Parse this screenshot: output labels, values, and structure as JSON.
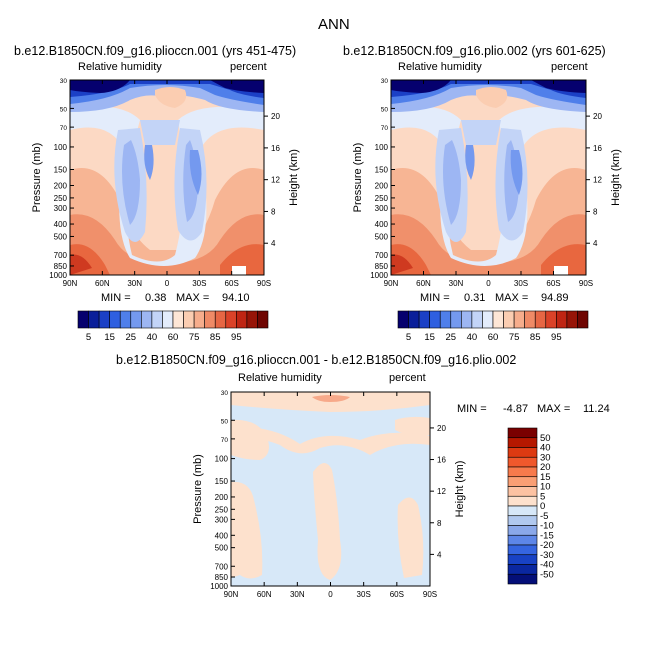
{
  "figure": {
    "title": "ANN"
  },
  "panels": [
    {
      "title": "b.e12.B1850CN.f09_g16.plioccn.001 (yrs 451-475)",
      "variable": "Relative humidity",
      "units": "percent",
      "ylabel": "Pressure (mb)",
      "y2label": "Height (km)",
      "min_label": "MIN =",
      "min_value": "0.38",
      "max_label": "MAX =",
      "max_value": "94.10"
    },
    {
      "title": "b.e12.B1850CN.f09_g16.plio.002 (yrs 601-625)",
      "variable": "Relative humidity",
      "units": "percent",
      "ylabel": "Pressure (mb)",
      "y2label": "Height (km)",
      "min_label": "MIN =",
      "min_value": "0.31",
      "max_label": "MAX =",
      "max_value": "94.89"
    },
    {
      "title": "b.e12.B1850CN.f09_g16.plioccn.001 - b.e12.B1850CN.f09_g16.plio.002",
      "variable": "Relative humidity",
      "units": "percent",
      "ylabel": "Pressure (mb)",
      "y2label": "Height (km)",
      "min_label": "MIN =",
      "min_value": "-4.87",
      "max_label": "MAX =",
      "max_value": "11.24"
    }
  ],
  "chart_data": {
    "type": "heatmap",
    "x_ticks": [
      "90N",
      "60N",
      "30N",
      "0",
      "30S",
      "60S",
      "90S"
    ],
    "y_ticks": [
      "30",
      "50",
      "70",
      "100",
      "150",
      "200",
      "250",
      "300",
      "400",
      "500",
      "700",
      "850",
      "1000"
    ],
    "y2_ticks": [
      "20",
      "16",
      "12",
      "8",
      "4"
    ],
    "abs_colorbar": {
      "levels": [
        5,
        10,
        15,
        20,
        25,
        30,
        35,
        40,
        50,
        60,
        65,
        70,
        75,
        80,
        85,
        90,
        95
      ],
      "labels": [
        "5",
        "15",
        "25",
        "40",
        "60",
        "75",
        "85",
        "95"
      ],
      "colors": [
        "#05006e",
        "#0a1f9a",
        "#1b40c6",
        "#2e5fe0",
        "#4f7fea",
        "#7499ef",
        "#9db6f3",
        "#c3d4f7",
        "#e3ecfb",
        "#fde6d6",
        "#fbcdb1",
        "#f6ad8c",
        "#ef8a66",
        "#e66644",
        "#da4228",
        "#bf2513",
        "#971407",
        "#6f0602"
      ]
    },
    "diff_colorbar": {
      "labels": [
        "50",
        "40",
        "30",
        "20",
        "15",
        "10",
        "5",
        "0",
        "-5",
        "-10",
        "-15",
        "-20",
        "-30",
        "-40",
        "-50"
      ],
      "colors": [
        "#7a0000",
        "#b51800",
        "#dd3a12",
        "#f0582c",
        "#f77a4c",
        "#fa9f74",
        "#fcc2a2",
        "#fde1cd",
        "#d7e8f8",
        "#b1c9ef",
        "#8aa8ea",
        "#5d86e8",
        "#3565e0",
        "#1842c4",
        "#0a27a0",
        "#040f78"
      ]
    },
    "series": [
      {
        "name": "plioccn.001",
        "min": 0.38,
        "max": 94.1
      },
      {
        "name": "plio.002",
        "min": 0.31,
        "max": 94.89
      },
      {
        "name": "difference",
        "min": -4.87,
        "max": 11.24
      }
    ]
  }
}
